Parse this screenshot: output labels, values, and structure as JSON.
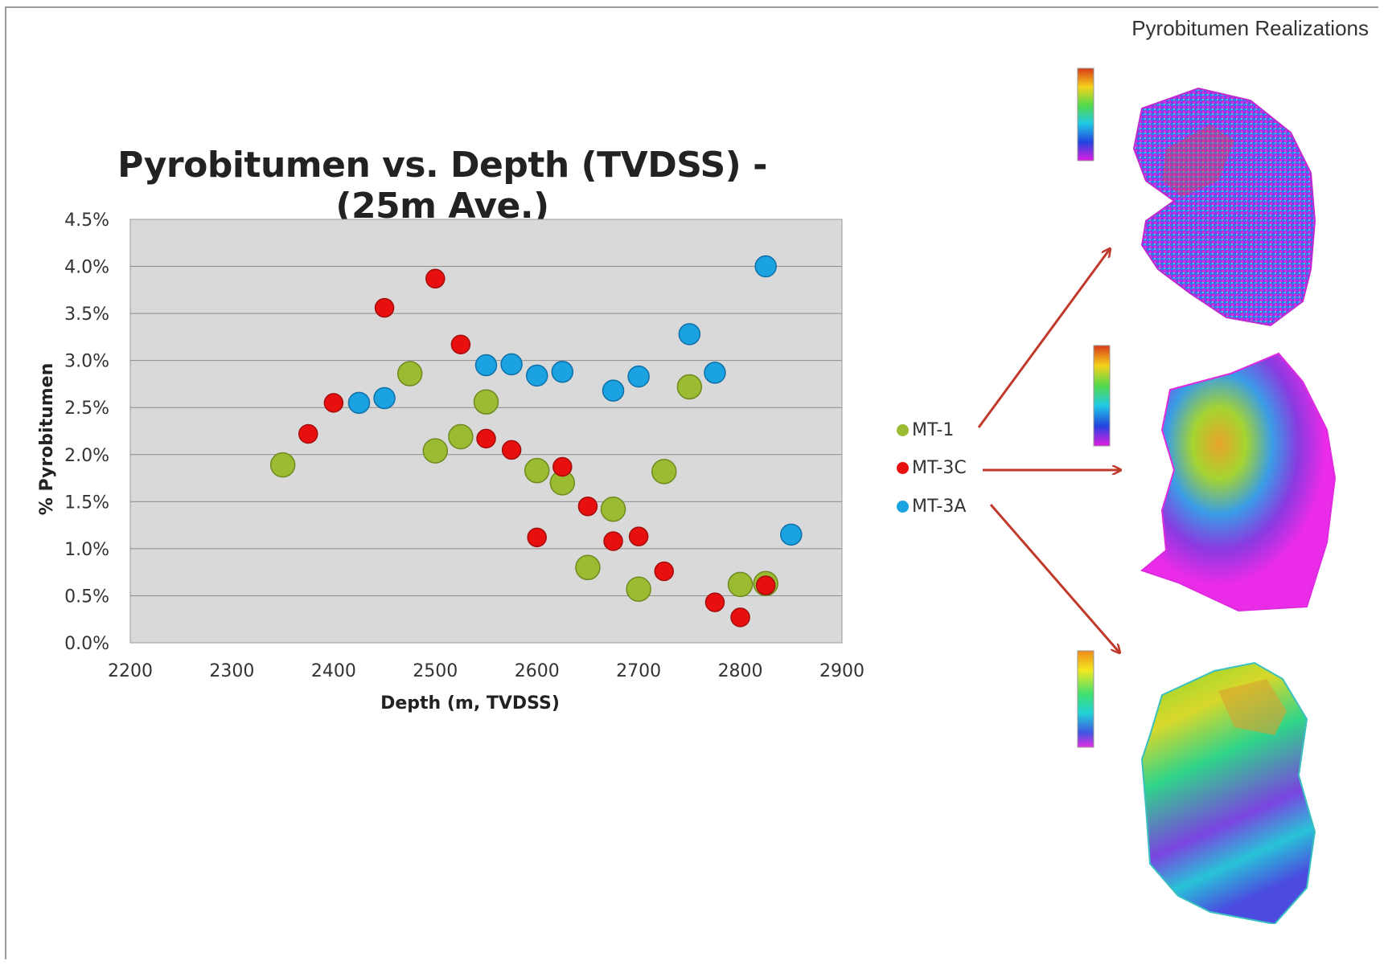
{
  "slide": {
    "corner_title": "Pyrobitumen Realizations"
  },
  "legend": {
    "items": [
      {
        "label": "MT-1",
        "color": "#9bbb32"
      },
      {
        "label": "MT-3C",
        "color": "#e8100f"
      },
      {
        "label": "MT-3A",
        "color": "#1aa3e0"
      }
    ]
  },
  "realizations": [
    {
      "colormap": "rainbow-magenta"
    },
    {
      "colormap": "rainbow-magenta"
    },
    {
      "colormap": "rainbow-magenta"
    }
  ],
  "chart_data": {
    "type": "scatter",
    "title": "Pyrobitumen vs. Depth (TVDSS) - (25m Ave.)",
    "xlabel": "Depth (m, TVDSS)",
    "ylabel": "% Pyrobitumen",
    "xlim": [
      2200,
      2900
    ],
    "ylim": [
      0,
      4.5
    ],
    "x_ticks": [
      "2200",
      "2300",
      "2400",
      "2500",
      "2600",
      "2700",
      "2800",
      "2900"
    ],
    "y_ticks": [
      "0.0%",
      "0.5%",
      "1.0%",
      "1.5%",
      "2.0%",
      "2.5%",
      "3.0%",
      "3.5%",
      "4.0%",
      "4.5%"
    ],
    "grid": true,
    "plot_background": "#d9d9d9",
    "series": [
      {
        "name": "MT-1",
        "color": "#9bbb32",
        "points": [
          [
            2350,
            1.89
          ],
          [
            2475,
            2.86
          ],
          [
            2500,
            2.04
          ],
          [
            2525,
            2.19
          ],
          [
            2550,
            2.56
          ],
          [
            2600,
            1.83
          ],
          [
            2625,
            1.7
          ],
          [
            2650,
            0.8
          ],
          [
            2675,
            1.42
          ],
          [
            2700,
            0.57
          ],
          [
            2725,
            1.82
          ],
          [
            2750,
            2.72
          ],
          [
            2800,
            0.62
          ],
          [
            2825,
            0.63
          ]
        ]
      },
      {
        "name": "MT-3C",
        "color": "#e8100f",
        "points": [
          [
            2375,
            2.22
          ],
          [
            2400,
            2.55
          ],
          [
            2450,
            3.56
          ],
          [
            2500,
            3.87
          ],
          [
            2525,
            3.17
          ],
          [
            2550,
            2.17
          ],
          [
            2575,
            2.05
          ],
          [
            2600,
            1.12
          ],
          [
            2625,
            1.87
          ],
          [
            2650,
            1.45
          ],
          [
            2675,
            1.08
          ],
          [
            2700,
            1.13
          ],
          [
            2725,
            0.76
          ],
          [
            2775,
            0.43
          ],
          [
            2800,
            0.27
          ],
          [
            2825,
            0.61
          ]
        ]
      },
      {
        "name": "MT-3A",
        "color": "#1aa3e0",
        "points": [
          [
            2425,
            2.55
          ],
          [
            2450,
            2.6
          ],
          [
            2550,
            2.95
          ],
          [
            2575,
            2.96
          ],
          [
            2600,
            2.84
          ],
          [
            2625,
            2.88
          ],
          [
            2675,
            2.68
          ],
          [
            2700,
            2.83
          ],
          [
            2750,
            3.28
          ],
          [
            2775,
            2.87
          ],
          [
            2825,
            4.0
          ],
          [
            2850,
            1.15
          ]
        ]
      }
    ]
  }
}
